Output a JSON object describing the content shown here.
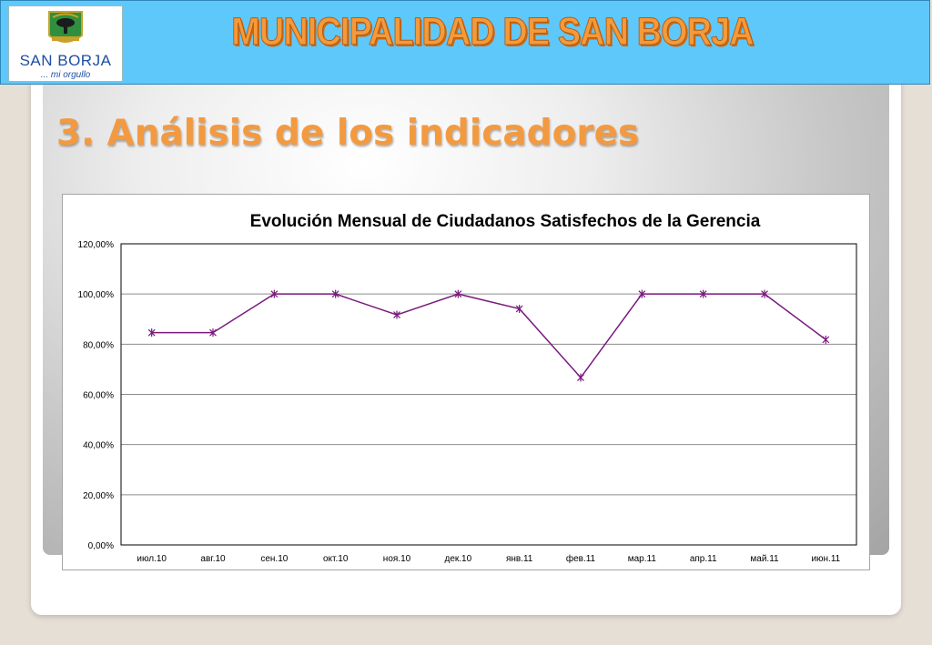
{
  "header": {
    "brand": "MUNICIPALIDAD DE SAN BORJA",
    "logo_name": "SAN BORJA",
    "logo_motto": "... mi orgullo"
  },
  "slide": {
    "title": "3. Análisis de los indicadores"
  },
  "colors": {
    "header_bg": "#5fc8fb",
    "title_orange": "#f39a40",
    "series_line": "#7a1a7e"
  },
  "chart_data": {
    "type": "line",
    "title": "Evolución Mensual de Ciudadanos Satisfechos de la Gerencia",
    "xlabel": "",
    "ylabel": "",
    "categories": [
      "июл.10",
      "авг.10",
      "сен.10",
      "окт.10",
      "ноя.10",
      "дек.10",
      "янв.11",
      "фев.11",
      "мар.11",
      "апр.11",
      "май.11",
      "июн.11"
    ],
    "series": [
      {
        "values": [
          84.6,
          84.6,
          100,
          100,
          91.7,
          100,
          94.1,
          66.7,
          100,
          100,
          100,
          81.8
        ]
      }
    ],
    "ylim": [
      0,
      120
    ],
    "yticks": [
      "0,00%",
      "20,00%",
      "40,00%",
      "60,00%",
      "80,00%",
      "100,00%",
      "120,00%"
    ],
    "grid": true,
    "legend": "none",
    "marker": "asterisk"
  }
}
